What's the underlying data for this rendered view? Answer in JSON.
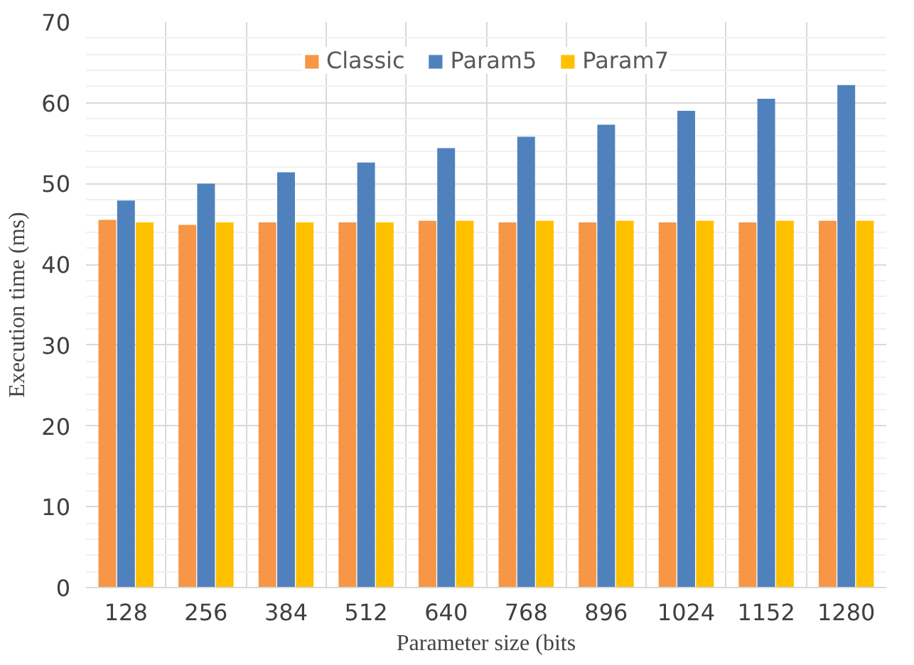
{
  "chart_data": {
    "type": "bar",
    "xlabel": "Parameter size (bits",
    "ylabel": "Execution time (ms)",
    "categories": [
      "128",
      "256",
      "384",
      "512",
      "640",
      "768",
      "896",
      "1024",
      "1152",
      "1280"
    ],
    "series": [
      {
        "name": "Classic",
        "color": "#f79646",
        "values": [
          45.5,
          44.9,
          45.2,
          45.2,
          45.4,
          45.2,
          45.2,
          45.2,
          45.2,
          45.4
        ]
      },
      {
        "name": "Param5",
        "color": "#4f81bd",
        "values": [
          47.9,
          50.0,
          51.4,
          52.6,
          54.4,
          55.8,
          57.3,
          59.0,
          60.5,
          62.2
        ]
      },
      {
        "name": "Param7",
        "color": "#ffc000",
        "values": [
          45.2,
          45.2,
          45.2,
          45.2,
          45.4,
          45.4,
          45.4,
          45.4,
          45.4,
          45.4
        ]
      }
    ],
    "ylim": [
      0,
      70
    ],
    "yticks": [
      0,
      10,
      20,
      30,
      40,
      50,
      60,
      70
    ],
    "grid": true,
    "legend": "top"
  }
}
